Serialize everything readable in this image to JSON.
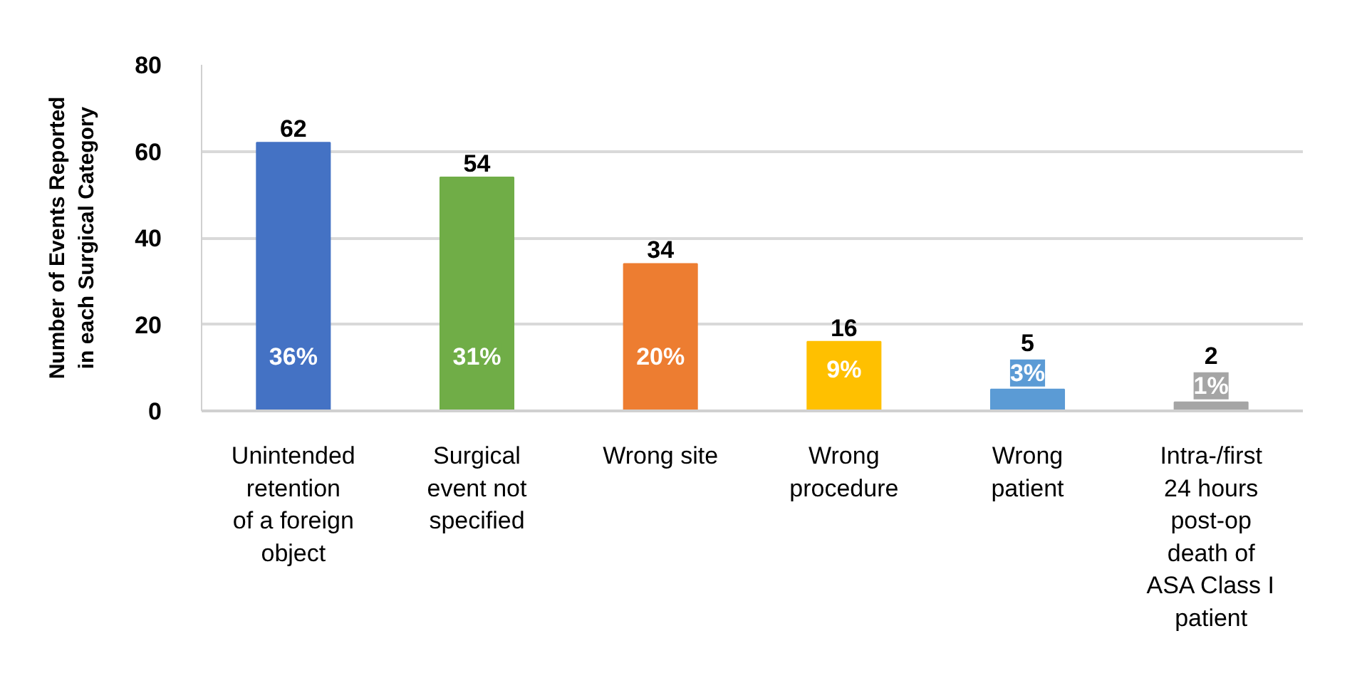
{
  "chart_data": {
    "type": "bar",
    "ylabel": "Number of Events Reported\nin each Surgical Category",
    "categories": [
      "Unintended\nretention\nof a foreign\nobject",
      "Surgical\nevent not\nspecified",
      "Wrong site",
      "Wrong\nprocedure",
      "Wrong\npatient",
      "Intra-/first\n24 hours\npost-op\ndeath of\nASA Class I\npatient"
    ],
    "values": [
      62,
      54,
      34,
      16,
      5,
      2
    ],
    "colors": [
      "#4472c4",
      "#70ad47",
      "#ed7d31",
      "#ffc000",
      "#5b9bd5",
      "#a5a5a5"
    ],
    "data_labels": true,
    "annotations": [
      "36%",
      "31%",
      "20%",
      "9%",
      "3%",
      "1%"
    ],
    "ylim": [
      0,
      80
    ],
    "yticks": [
      0,
      20,
      40,
      60,
      80
    ],
    "grid": "y"
  }
}
